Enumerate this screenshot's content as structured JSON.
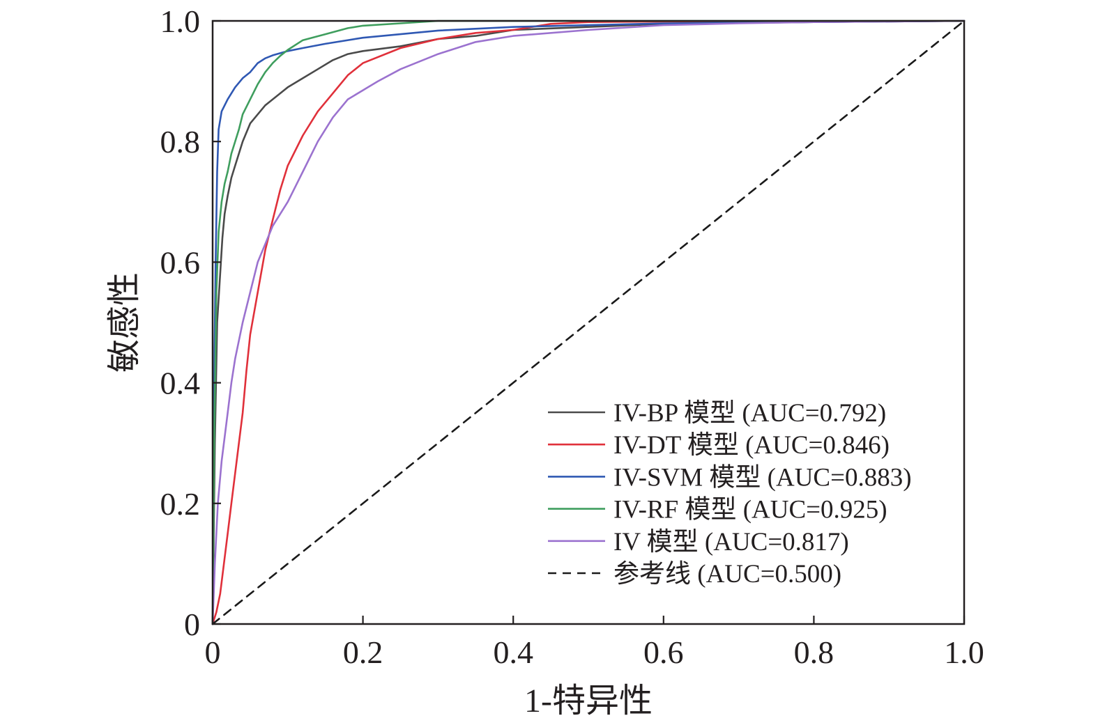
{
  "chart_data": {
    "type": "line",
    "xlabel": "1-特异性",
    "ylabel": "敏感性",
    "xlim": [
      0,
      1.0
    ],
    "ylim": [
      0,
      1.0
    ],
    "x_ticks": [
      "0",
      "0.2",
      "0.4",
      "0.6",
      "0.8",
      "1.0"
    ],
    "y_ticks": [
      "0",
      "0.2",
      "0.4",
      "0.6",
      "0.8",
      "1.0"
    ],
    "grid": false,
    "legend_position": "bottom-right",
    "series": [
      {
        "name": "IV-BP 模型 (AUC=0.792)",
        "color": "#4a4a4a",
        "dash": false,
        "points": [
          [
            0,
            0
          ],
          [
            0.003,
            0.3
          ],
          [
            0.006,
            0.5
          ],
          [
            0.01,
            0.58
          ],
          [
            0.013,
            0.64
          ],
          [
            0.016,
            0.68
          ],
          [
            0.02,
            0.71
          ],
          [
            0.025,
            0.74
          ],
          [
            0.03,
            0.76
          ],
          [
            0.035,
            0.78
          ],
          [
            0.04,
            0.8
          ],
          [
            0.05,
            0.83
          ],
          [
            0.06,
            0.845
          ],
          [
            0.07,
            0.86
          ],
          [
            0.08,
            0.87
          ],
          [
            0.1,
            0.89
          ],
          [
            0.12,
            0.905
          ],
          [
            0.14,
            0.92
          ],
          [
            0.16,
            0.935
          ],
          [
            0.18,
            0.945
          ],
          [
            0.2,
            0.95
          ],
          [
            0.25,
            0.958
          ],
          [
            0.3,
            0.97
          ],
          [
            0.35,
            0.975
          ],
          [
            0.4,
            0.985
          ],
          [
            0.5,
            0.99
          ],
          [
            0.6,
            0.995
          ],
          [
            0.8,
            0.998
          ],
          [
            1.0,
            1.0
          ]
        ]
      },
      {
        "name": "IV-DT 模型 (AUC=0.846)",
        "color": "#e0303a",
        "dash": false,
        "points": [
          [
            0,
            0
          ],
          [
            0.005,
            0.02
          ],
          [
            0.01,
            0.05
          ],
          [
            0.015,
            0.1
          ],
          [
            0.02,
            0.15
          ],
          [
            0.025,
            0.2
          ],
          [
            0.03,
            0.25
          ],
          [
            0.035,
            0.3
          ],
          [
            0.04,
            0.35
          ],
          [
            0.045,
            0.42
          ],
          [
            0.05,
            0.48
          ],
          [
            0.06,
            0.55
          ],
          [
            0.07,
            0.62
          ],
          [
            0.08,
            0.67
          ],
          [
            0.09,
            0.72
          ],
          [
            0.1,
            0.76
          ],
          [
            0.12,
            0.81
          ],
          [
            0.14,
            0.85
          ],
          [
            0.16,
            0.88
          ],
          [
            0.18,
            0.91
          ],
          [
            0.2,
            0.93
          ],
          [
            0.25,
            0.955
          ],
          [
            0.3,
            0.97
          ],
          [
            0.35,
            0.98
          ],
          [
            0.4,
            0.985
          ],
          [
            0.45,
            0.995
          ],
          [
            0.5,
            0.998
          ],
          [
            0.6,
            0.999
          ],
          [
            1.0,
            1.0
          ]
        ]
      },
      {
        "name": "IV-SVM 模型 (AUC=0.883)",
        "color": "#2f58b3",
        "dash": false,
        "points": [
          [
            0,
            0
          ],
          [
            0.002,
            0.4
          ],
          [
            0.004,
            0.6
          ],
          [
            0.006,
            0.75
          ],
          [
            0.008,
            0.82
          ],
          [
            0.012,
            0.85
          ],
          [
            0.02,
            0.87
          ],
          [
            0.03,
            0.89
          ],
          [
            0.04,
            0.905
          ],
          [
            0.05,
            0.915
          ],
          [
            0.06,
            0.93
          ],
          [
            0.07,
            0.938
          ],
          [
            0.08,
            0.943
          ],
          [
            0.1,
            0.95
          ],
          [
            0.12,
            0.955
          ],
          [
            0.15,
            0.962
          ],
          [
            0.2,
            0.972
          ],
          [
            0.25,
            0.978
          ],
          [
            0.3,
            0.984
          ],
          [
            0.4,
            0.99
          ],
          [
            0.5,
            0.993
          ],
          [
            0.6,
            0.996
          ],
          [
            0.8,
            0.998
          ],
          [
            1.0,
            1.0
          ]
        ]
      },
      {
        "name": "IV-RF 模型 (AUC=0.925)",
        "color": "#3f9e5e",
        "dash": false,
        "points": [
          [
            0,
            0
          ],
          [
            0.002,
            0.3
          ],
          [
            0.005,
            0.55
          ],
          [
            0.008,
            0.65
          ],
          [
            0.012,
            0.7
          ],
          [
            0.016,
            0.73
          ],
          [
            0.02,
            0.75
          ],
          [
            0.025,
            0.78
          ],
          [
            0.03,
            0.8
          ],
          [
            0.035,
            0.82
          ],
          [
            0.04,
            0.845
          ],
          [
            0.05,
            0.87
          ],
          [
            0.06,
            0.895
          ],
          [
            0.07,
            0.915
          ],
          [
            0.08,
            0.93
          ],
          [
            0.09,
            0.942
          ],
          [
            0.1,
            0.952
          ],
          [
            0.12,
            0.968
          ],
          [
            0.15,
            0.978
          ],
          [
            0.18,
            0.988
          ],
          [
            0.2,
            0.992
          ],
          [
            0.25,
            0.996
          ],
          [
            0.3,
            1.0
          ],
          [
            1.0,
            1.0
          ]
        ]
      },
      {
        "name": "IV 模型 (AUC=0.817)",
        "color": "#9b72cf",
        "dash": false,
        "points": [
          [
            0,
            0
          ],
          [
            0.003,
            0.1
          ],
          [
            0.007,
            0.2
          ],
          [
            0.012,
            0.27
          ],
          [
            0.02,
            0.35
          ],
          [
            0.025,
            0.4
          ],
          [
            0.03,
            0.44
          ],
          [
            0.04,
            0.5
          ],
          [
            0.05,
            0.55
          ],
          [
            0.06,
            0.6
          ],
          [
            0.07,
            0.63
          ],
          [
            0.08,
            0.66
          ],
          [
            0.1,
            0.7
          ],
          [
            0.12,
            0.75
          ],
          [
            0.14,
            0.8
          ],
          [
            0.16,
            0.84
          ],
          [
            0.18,
            0.87
          ],
          [
            0.2,
            0.885
          ],
          [
            0.22,
            0.9
          ],
          [
            0.25,
            0.92
          ],
          [
            0.3,
            0.945
          ],
          [
            0.35,
            0.965
          ],
          [
            0.4,
            0.975
          ],
          [
            0.5,
            0.985
          ],
          [
            0.6,
            0.993
          ],
          [
            0.7,
            0.996
          ],
          [
            0.8,
            0.998
          ],
          [
            1.0,
            1.0
          ]
        ]
      },
      {
        "name": "参考线 (AUC=0.500)",
        "color": "#1a1a1a",
        "dash": true,
        "points": [
          [
            0,
            0
          ],
          [
            1,
            1
          ]
        ]
      }
    ]
  }
}
